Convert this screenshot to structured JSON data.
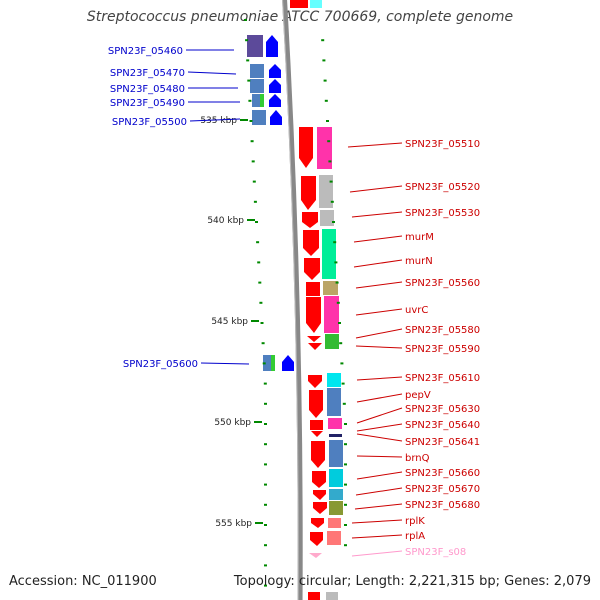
{
  "title": "Streptococcus pneumoniae ATCC 700669, complete genome",
  "footer": {
    "accession": "Accession: NC_011900",
    "summary": "Topology: circular; Length: 2,221,315 bp; Genes: 2,079"
  },
  "ruler": [
    {
      "label": "535 kbp",
      "kbp": 535
    },
    {
      "label": "540 kbp",
      "kbp": 540
    },
    {
      "label": "545 kbp",
      "kbp": 545
    },
    {
      "label": "550 kbp",
      "kbp": 550
    },
    {
      "label": "555 kbp",
      "kbp": 555
    }
  ],
  "colors": {
    "left_label": "#0000cc",
    "right_label": "#cc0000",
    "pseudo_label": "#ff99cc",
    "reverse_arrow": "#0000ff",
    "forward_arrow": "#ff0000",
    "tick": "#008800",
    "backbone": "#888888"
  },
  "left_genes": [
    {
      "name": "SPN23F_05460"
    },
    {
      "name": "SPN23F_05470"
    },
    {
      "name": "SPN23F_05480"
    },
    {
      "name": "SPN23F_05490"
    },
    {
      "name": "SPN23F_05500"
    },
    {
      "name": "SPN23F_05600"
    }
  ],
  "right_genes": [
    {
      "name": "SPN23F_05510"
    },
    {
      "name": "SPN23F_05520"
    },
    {
      "name": "SPN23F_05530"
    },
    {
      "name": "murM"
    },
    {
      "name": "murN"
    },
    {
      "name": "SPN23F_05560"
    },
    {
      "name": "uvrC"
    },
    {
      "name": "SPN23F_05580"
    },
    {
      "name": "SPN23F_05590"
    },
    {
      "name": "SPN23F_05610"
    },
    {
      "name": "pepV"
    },
    {
      "name": "SPN23F_05630"
    },
    {
      "name": "SPN23F_05640"
    },
    {
      "name": "SPN23F_05641"
    },
    {
      "name": "brnQ"
    },
    {
      "name": "SPN23F_05660"
    },
    {
      "name": "SPN23F_05670"
    },
    {
      "name": "SPN23F_05680"
    },
    {
      "name": "rplK"
    },
    {
      "name": "rplA"
    },
    {
      "name": "SPN23F_s08",
      "pseudo": true
    }
  ]
}
